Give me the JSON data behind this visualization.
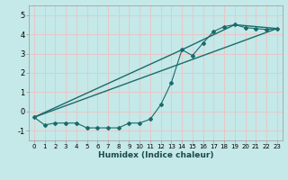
{
  "title": "",
  "xlabel": "Humidex (Indice chaleur)",
  "ylabel": "",
  "background_color": "#c5e8e8",
  "grid_color": "#e8c8c8",
  "line_color": "#1a6b6b",
  "xlim": [
    -0.5,
    23.5
  ],
  "ylim": [
    -1.5,
    5.5
  ],
  "xticks": [
    0,
    1,
    2,
    3,
    4,
    5,
    6,
    7,
    8,
    9,
    10,
    11,
    12,
    13,
    14,
    15,
    16,
    17,
    18,
    19,
    20,
    21,
    22,
    23
  ],
  "yticks": [
    -1,
    0,
    1,
    2,
    3,
    4,
    5
  ],
  "series1_x": [
    0,
    1,
    2,
    3,
    4,
    5,
    6,
    7,
    8,
    9,
    10,
    11,
    12,
    13,
    14,
    15,
    16,
    17,
    18,
    19,
    20,
    21,
    22,
    23
  ],
  "series1_y": [
    -0.3,
    -0.7,
    -0.6,
    -0.6,
    -0.6,
    -0.85,
    -0.85,
    -0.85,
    -0.85,
    -0.6,
    -0.6,
    -0.4,
    0.35,
    1.5,
    3.2,
    2.9,
    3.55,
    4.15,
    4.4,
    4.5,
    4.35,
    4.3,
    4.25,
    4.3
  ],
  "series2_x": [
    0,
    23
  ],
  "series2_y": [
    -0.3,
    4.3
  ],
  "series3_x": [
    0,
    14,
    19,
    23
  ],
  "series3_y": [
    -0.3,
    3.2,
    4.5,
    4.3
  ]
}
